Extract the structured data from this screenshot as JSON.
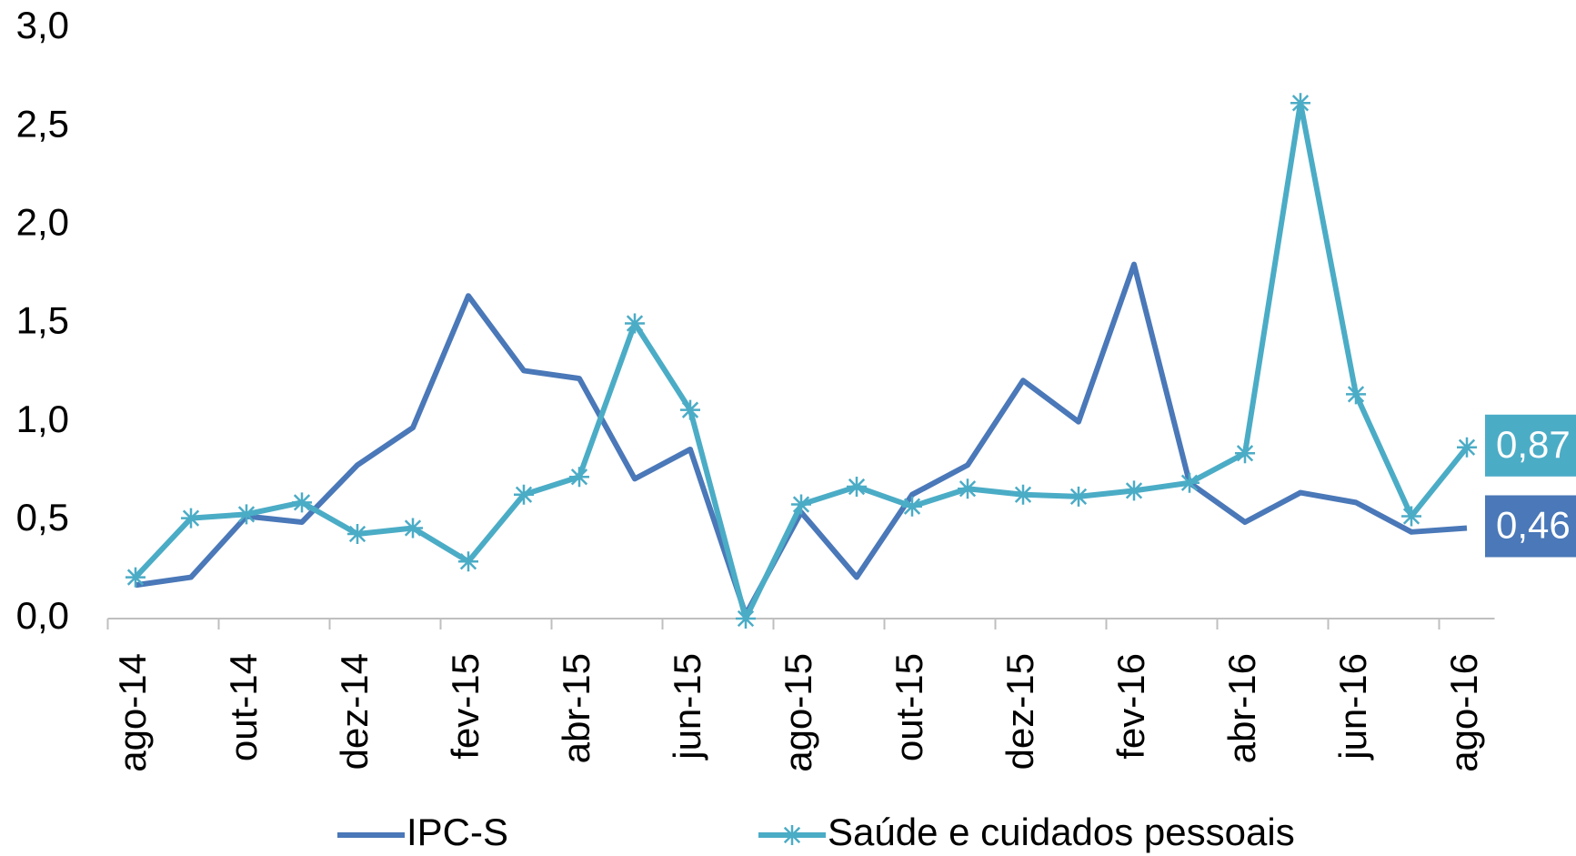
{
  "chart_data": {
    "type": "line",
    "categories": [
      "ago-14",
      null,
      "out-14",
      null,
      "dez-14",
      null,
      "fev-15",
      null,
      "abr-15",
      null,
      "jun-15",
      null,
      "ago-15",
      null,
      "out-15",
      null,
      "dez-15",
      null,
      "fev-16",
      null,
      "abr-16",
      null,
      "jun-16",
      null,
      "ago-16"
    ],
    "series": [
      {
        "name": "IPC-S",
        "color": "#4a78b8",
        "marker": "none",
        "values": [
          0.17,
          0.21,
          0.52,
          0.49,
          0.78,
          0.97,
          1.64,
          1.26,
          1.22,
          0.71,
          0.86,
          0.02,
          0.54,
          0.21,
          0.63,
          0.78,
          1.21,
          1.0,
          1.8,
          0.69,
          0.49,
          0.64,
          0.59,
          0.44,
          0.46
        ],
        "value_labels": [
          null,
          null,
          null,
          null,
          null,
          null,
          null,
          null,
          null,
          null,
          null,
          null,
          null,
          null,
          null,
          null,
          null,
          null,
          null,
          null,
          null,
          null,
          null,
          null,
          "0,46"
        ]
      },
      {
        "name": "Saúde e cuidados pessoais",
        "color": "#4bacc6",
        "marker": "star",
        "values": [
          0.21,
          0.51,
          0.53,
          0.59,
          0.43,
          0.46,
          0.29,
          0.63,
          0.72,
          1.5,
          1.06,
          0.0,
          0.58,
          0.67,
          0.57,
          0.66,
          0.63,
          0.62,
          0.65,
          0.69,
          0.84,
          2.62,
          1.14,
          0.52,
          0.87
        ],
        "value_labels": [
          null,
          null,
          null,
          null,
          null,
          null,
          null,
          null,
          null,
          null,
          null,
          null,
          null,
          null,
          null,
          null,
          null,
          null,
          null,
          null,
          null,
          null,
          null,
          null,
          "0,87"
        ]
      }
    ],
    "ylim": [
      0,
      3
    ],
    "yticks": [
      {
        "value": 0,
        "label": "0,0"
      },
      {
        "value": 0.5,
        "label": "0,5"
      },
      {
        "value": 1,
        "label": "1,0"
      },
      {
        "value": 1.5,
        "label": "1,5"
      },
      {
        "value": 2,
        "label": "2,0"
      },
      {
        "value": 2.5,
        "label": "2,5"
      },
      {
        "value": 3,
        "label": "3,0"
      }
    ],
    "grid": false,
    "legend": "bottom"
  }
}
